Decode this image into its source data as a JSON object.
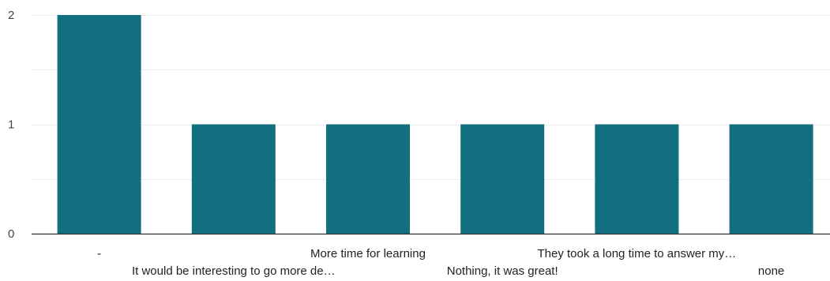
{
  "chart_data": {
    "type": "bar",
    "categories": [
      "-",
      "It would be interesting to go more de…",
      "More time for learning",
      "Nothing, it was great!",
      "They took a long time to answer my…",
      "none"
    ],
    "values": [
      2,
      1,
      1,
      1,
      1,
      1
    ],
    "ylim": [
      0,
      2
    ],
    "yticks": [
      "0",
      "1",
      "2"
    ],
    "grid": true,
    "colors": {
      "bar": "#116f80",
      "grid": "#ececec",
      "axis": "#333333",
      "tick_text": "#444444",
      "category_text": "#222222"
    }
  }
}
